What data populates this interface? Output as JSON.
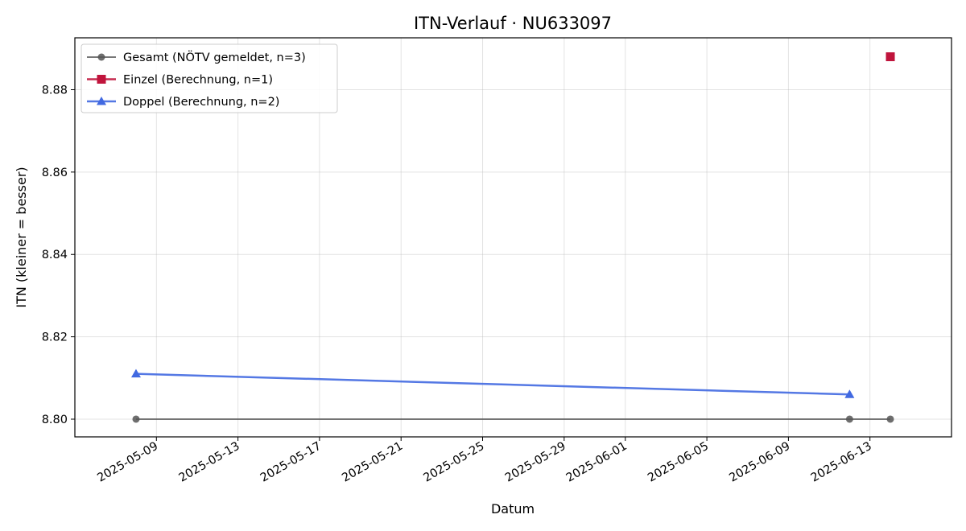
{
  "chart_data": {
    "type": "line",
    "title": "ITN-Verlauf · NU633097",
    "xlabel": "Datum",
    "ylabel": "ITN  (kleiner = besser)",
    "x_type": "date",
    "xlim": [
      "2025-05-05",
      "2025-06-17"
    ],
    "ylim": [
      8.7957,
      8.8926
    ],
    "x_ticks": [
      "2025-05-09",
      "2025-05-13",
      "2025-05-17",
      "2025-05-21",
      "2025-05-25",
      "2025-05-29",
      "2025-06-01",
      "2025-06-05",
      "2025-06-09",
      "2025-06-13"
    ],
    "y_ticks": [
      8.8,
      8.82,
      8.84,
      8.86,
      8.88
    ],
    "grid": true,
    "legend_position": "top-left",
    "series": [
      {
        "name": "Gesamt (NÖTV gemeldet, n=3)",
        "color": "#555555",
        "marker": "circle",
        "line": true,
        "points": [
          {
            "x": "2025-05-08",
            "y": 8.8
          },
          {
            "x": "2025-06-12",
            "y": 8.8
          },
          {
            "x": "2025-06-14",
            "y": 8.8
          }
        ]
      },
      {
        "name": "Einzel (Berechnung, n=1)",
        "color": "#c0143c",
        "marker": "square",
        "line": true,
        "points": [
          {
            "x": "2025-06-14",
            "y": 8.888
          }
        ]
      },
      {
        "name": "Doppel (Berechnung, n=2)",
        "color": "#4169e1",
        "marker": "triangle",
        "line": true,
        "points": [
          {
            "x": "2025-05-08",
            "y": 8.811
          },
          {
            "x": "2025-06-12",
            "y": 8.806
          }
        ]
      }
    ]
  }
}
